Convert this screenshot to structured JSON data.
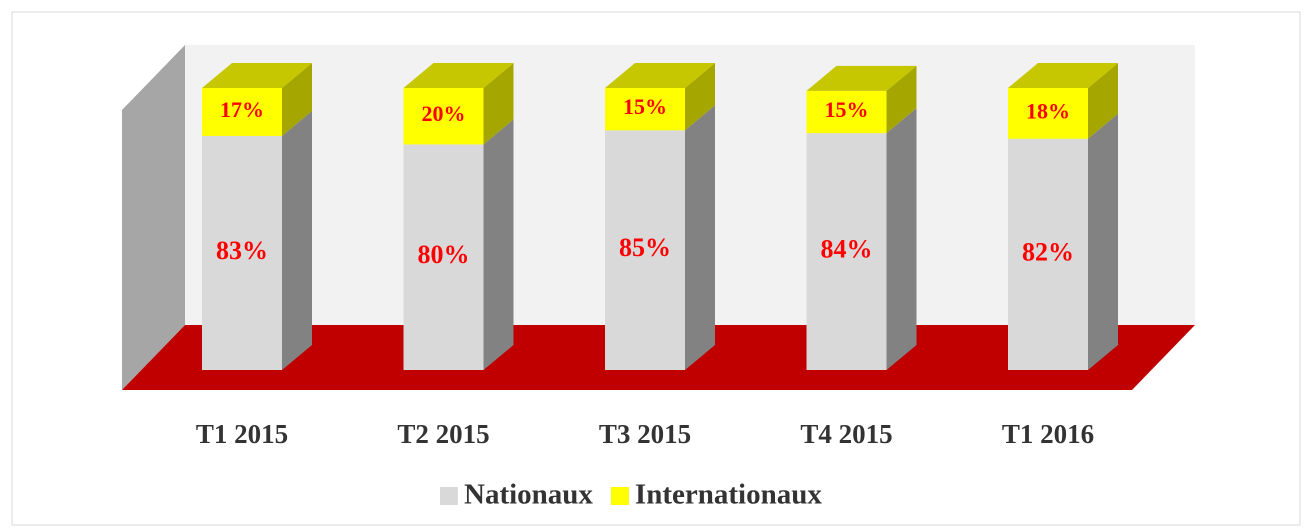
{
  "chart_data": {
    "type": "stacked_bar_3d",
    "categories": [
      "T1 2015",
      "T2 2015",
      "T3 2015",
      "T4 2015",
      "T1 2016"
    ],
    "series": [
      {
        "name": "Nationaux",
        "color": "#d9d9d9",
        "values": [
          83,
          80,
          85,
          84,
          82
        ],
        "value_labels": [
          "83%",
          "80%",
          "85%",
          "84%",
          "82%"
        ]
      },
      {
        "name": "Internationaux",
        "color": "#ffff00",
        "values": [
          17,
          20,
          15,
          15,
          18
        ],
        "value_labels": [
          "17%",
          "20%",
          "15%",
          "15%",
          "18%"
        ]
      }
    ],
    "ylim": [
      0,
      100
    ],
    "legend": "bottom"
  }
}
